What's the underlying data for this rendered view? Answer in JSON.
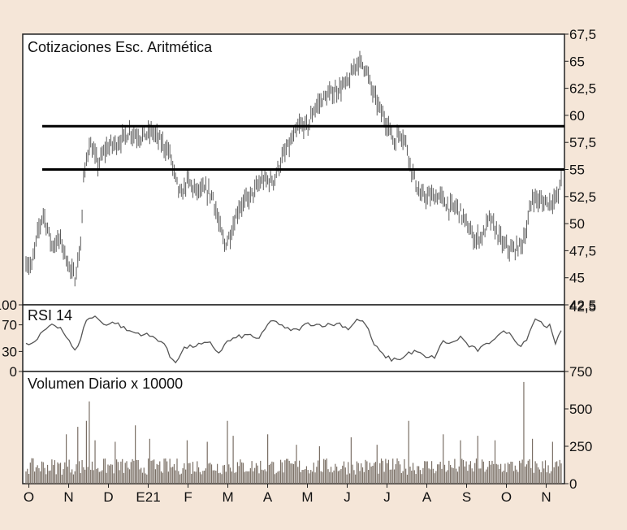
{
  "colors": {
    "background": "#f5e6d8",
    "panel_background": "#ffffff",
    "frame": "#222222",
    "price_bars": "#5a5a5a",
    "rsi_line": "#555555",
    "volume_bars": "#7a6f65",
    "resistance_lines": "#000000"
  },
  "chart_data": [
    {
      "type": "ohlc",
      "title": "Cotizaciones Esc. Aritmética",
      "ylim": [
        42.5,
        67.5
      ],
      "y_ticks": [
        "67,5",
        "65",
        "62,5",
        "60",
        "57,5",
        "55",
        "52,5",
        "50",
        "47,5",
        "45",
        "42,5"
      ],
      "y_tick_values": [
        67.5,
        65,
        62.5,
        60,
        57.5,
        55,
        52.5,
        50,
        47.5,
        45,
        42.5
      ],
      "x_ticks": [
        "O",
        "N",
        "D",
        "E21",
        "F",
        "M",
        "A",
        "M",
        "J",
        "J",
        "A",
        "S",
        "O",
        "N"
      ],
      "horizontal_lines": [
        59,
        55
      ],
      "price_path": [
        [
          0,
          46.5
        ],
        [
          4,
          46
        ],
        [
          8,
          49
        ],
        [
          12,
          51
        ],
        [
          18,
          48
        ],
        [
          24,
          48.5
        ],
        [
          30,
          46
        ],
        [
          34,
          45
        ],
        [
          38,
          48
        ],
        [
          40,
          54
        ],
        [
          44,
          57.5
        ],
        [
          50,
          55.5
        ],
        [
          56,
          57
        ],
        [
          64,
          57.5
        ],
        [
          72,
          58.5
        ],
        [
          80,
          58
        ],
        [
          88,
          58.5
        ],
        [
          94,
          57.5
        ],
        [
          100,
          56.5
        ],
        [
          104,
          54
        ],
        [
          108,
          52.5
        ],
        [
          112,
          54
        ],
        [
          118,
          53
        ],
        [
          126,
          53
        ],
        [
          130,
          52.5
        ],
        [
          134,
          50
        ],
        [
          138,
          48
        ],
        [
          142,
          49
        ],
        [
          148,
          51.5
        ],
        [
          156,
          52.5
        ],
        [
          164,
          54
        ],
        [
          172,
          54
        ],
        [
          178,
          56
        ],
        [
          184,
          57.5
        ],
        [
          190,
          59
        ],
        [
          196,
          59
        ],
        [
          200,
          60.5
        ],
        [
          206,
          61.5
        ],
        [
          212,
          62
        ],
        [
          218,
          62.5
        ],
        [
          224,
          63
        ],
        [
          230,
          65
        ],
        [
          236,
          64.5
        ],
        [
          240,
          62.5
        ],
        [
          246,
          60.5
        ],
        [
          252,
          59
        ],
        [
          256,
          57.5
        ],
        [
          260,
          58.5
        ],
        [
          264,
          57.5
        ],
        [
          268,
          55
        ],
        [
          274,
          52.5
        ],
        [
          280,
          52.5
        ],
        [
          288,
          52.5
        ],
        [
          294,
          51.5
        ],
        [
          300,
          51.5
        ],
        [
          306,
          50
        ],
        [
          312,
          48.5
        ],
        [
          318,
          49
        ],
        [
          322,
          50.5
        ],
        [
          326,
          49.5
        ],
        [
          332,
          48
        ],
        [
          338,
          47.5
        ],
        [
          344,
          48
        ],
        [
          348,
          49.5
        ],
        [
          352,
          52.5
        ],
        [
          358,
          52
        ],
        [
          364,
          52
        ],
        [
          370,
          52.5
        ],
        [
          372,
          54.5
        ]
      ],
      "n_days": 372
    },
    {
      "type": "line",
      "title": "RSI 14",
      "ylim": [
        0,
        100
      ],
      "y_ticks": [
        "100",
        "70",
        "30",
        "0"
      ],
      "y_tick_values": [
        100,
        70,
        30,
        0
      ],
      "right_tick": "42,5",
      "values_path": [
        [
          0,
          40
        ],
        [
          6,
          43
        ],
        [
          12,
          60
        ],
        [
          18,
          72
        ],
        [
          24,
          66
        ],
        [
          30,
          45
        ],
        [
          34,
          30
        ],
        [
          38,
          50
        ],
        [
          42,
          78
        ],
        [
          48,
          82
        ],
        [
          56,
          70
        ],
        [
          62,
          74
        ],
        [
          70,
          62
        ],
        [
          76,
          58
        ],
        [
          84,
          55
        ],
        [
          92,
          48
        ],
        [
          96,
          42
        ],
        [
          100,
          22
        ],
        [
          104,
          15
        ],
        [
          110,
          35
        ],
        [
          120,
          40
        ],
        [
          128,
          42
        ],
        [
          134,
          28
        ],
        [
          140,
          45
        ],
        [
          148,
          52
        ],
        [
          156,
          55
        ],
        [
          162,
          48
        ],
        [
          168,
          70
        ],
        [
          172,
          78
        ],
        [
          180,
          64
        ],
        [
          188,
          62
        ],
        [
          196,
          72
        ],
        [
          204,
          70
        ],
        [
          212,
          70
        ],
        [
          218,
          72
        ],
        [
          224,
          64
        ],
        [
          230,
          78
        ],
        [
          236,
          72
        ],
        [
          242,
          40
        ],
        [
          248,
          25
        ],
        [
          254,
          18
        ],
        [
          262,
          20
        ],
        [
          266,
          28
        ],
        [
          272,
          30
        ],
        [
          278,
          20
        ],
        [
          284,
          22
        ],
        [
          290,
          45
        ],
        [
          296,
          42
        ],
        [
          302,
          52
        ],
        [
          308,
          38
        ],
        [
          314,
          32
        ],
        [
          320,
          40
        ],
        [
          328,
          55
        ],
        [
          334,
          60
        ],
        [
          340,
          48
        ],
        [
          344,
          38
        ],
        [
          348,
          50
        ],
        [
          354,
          80
        ],
        [
          360,
          70
        ],
        [
          364,
          68
        ],
        [
          368,
          40
        ],
        [
          372,
          62
        ]
      ]
    },
    {
      "type": "bar",
      "title": "Volumen Diario x 10000",
      "ylim": [
        0,
        750
      ],
      "y_ticks": [
        "750",
        "500",
        "250",
        "0"
      ],
      "y_tick_values": [
        750,
        500,
        250,
        0
      ],
      "right_tick": "0",
      "typical": [
        60,
        170
      ],
      "spikes": [
        [
          28,
          330
        ],
        [
          36,
          380
        ],
        [
          42,
          420
        ],
        [
          44,
          550
        ],
        [
          48,
          290
        ],
        [
          62,
          280
        ],
        [
          76,
          390
        ],
        [
          86,
          300
        ],
        [
          112,
          290
        ],
        [
          126,
          280
        ],
        [
          140,
          420
        ],
        [
          144,
          320
        ],
        [
          168,
          330
        ],
        [
          188,
          260
        ],
        [
          204,
          250
        ],
        [
          226,
          310
        ],
        [
          244,
          260
        ],
        [
          266,
          420
        ],
        [
          290,
          330
        ],
        [
          302,
          290
        ],
        [
          314,
          320
        ],
        [
          326,
          290
        ],
        [
          346,
          680
        ],
        [
          352,
          300
        ],
        [
          366,
          280
        ]
      ]
    }
  ]
}
